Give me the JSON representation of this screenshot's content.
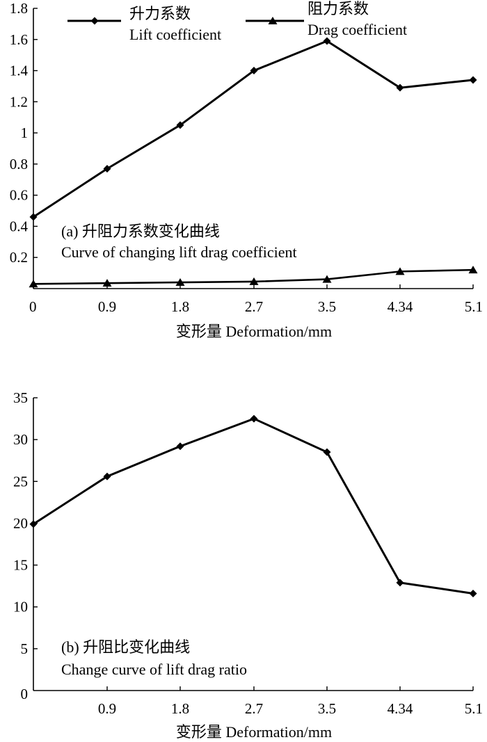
{
  "chart_data": [
    {
      "type": "line",
      "categories": [
        "0",
        "0.9",
        "1.8",
        "2.7",
        "3.5",
        "4.34",
        "5.1"
      ],
      "ylim": [
        0,
        1.8
      ],
      "yticks": [
        "0.2",
        "0.4",
        "0.6",
        "0.8",
        "1",
        "1.2",
        "1.4",
        "1.6",
        "1.8"
      ],
      "xlabel": "变形量 Deformation/mm",
      "caption": [
        "(a) 升阻力系数变化曲线",
        "Curve of changing lift drag coefficient"
      ],
      "series": [
        {
          "name": "升力系数",
          "name_en": "Lift coefficient",
          "marker": "diamond",
          "values": [
            0.46,
            0.77,
            1.05,
            1.4,
            1.59,
            1.29,
            1.34
          ]
        },
        {
          "name": "阻力系数",
          "name_en": "Drag coefficient",
          "marker": "triangle",
          "values": [
            0.03,
            0.035,
            0.04,
            0.045,
            0.06,
            0.11,
            0.12
          ]
        }
      ],
      "legend_position": "top"
    },
    {
      "type": "line",
      "categories": [
        "0.9",
        "1.8",
        "2.7",
        "3.5",
        "4.34",
        "5.1"
      ],
      "x": [
        0,
        0.9,
        1.8,
        2.7,
        3.5,
        4.34,
        5.1
      ],
      "ylim": [
        0,
        35
      ],
      "yticks": [
        "0",
        "5",
        "10",
        "15",
        "20",
        "25",
        "30",
        "35"
      ],
      "xlabel": "变形量 Deformation/mm",
      "caption": [
        "(b) 升阻比变化曲线",
        "Change curve of lift drag ratio"
      ],
      "series": [
        {
          "marker": "diamond",
          "values": [
            19.9,
            25.6,
            29.2,
            32.5,
            28.5,
            12.9,
            11.6
          ]
        }
      ]
    }
  ]
}
